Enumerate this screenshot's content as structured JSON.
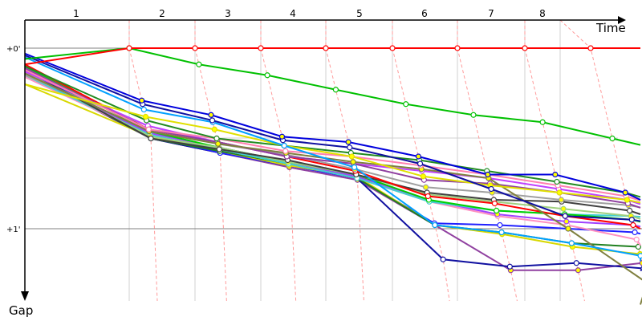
{
  "chart_data": {
    "type": "line",
    "xlabel": "Time",
    "ylabel": "Gap",
    "lap_labels": [
      "1",
      "2",
      "3",
      "4",
      "5",
      "6",
      "7",
      "8"
    ],
    "y_ticks": [
      {
        "value": 0,
        "label": "+0'"
      },
      {
        "value": 1,
        "label": "+1'"
      }
    ],
    "y_unit": "minutes",
    "x": [
      0,
      1,
      2,
      3,
      4,
      5,
      6,
      7,
      8
    ],
    "grid": true,
    "lap_marker_color": "#ff9a9a",
    "series": [
      {
        "color": "#ff0000",
        "values": [
          0.09,
          0,
          0,
          0,
          0,
          0,
          0,
          0,
          0
        ]
      },
      {
        "color": "#00c000",
        "values": [
          0.06,
          0,
          0.09,
          0.15,
          0.23,
          0.31,
          0.37,
          0.41,
          0.5
        ]
      },
      {
        "color": "#0000dd",
        "values": [
          0.03,
          0.29,
          0.37,
          0.49,
          0.52,
          0.6,
          0.7,
          0.7,
          0.8
        ]
      },
      {
        "color": "#1010a0",
        "values": [
          0.04,
          0.31,
          0.4,
          0.51,
          0.55,
          0.64,
          0.78,
          0.93,
          0.95
        ]
      },
      {
        "color": "#00a0ff",
        "values": [
          0.05,
          0.34,
          0.41,
          0.54,
          0.66,
          0.98,
          1.02,
          1.08,
          1.15
        ]
      },
      {
        "color": "#e0e000",
        "values": [
          0.2,
          0.38,
          0.45,
          0.54,
          0.6,
          0.71,
          0.76,
          0.8,
          0.84
        ]
      },
      {
        "color": "#228b22",
        "values": [
          0.1,
          0.4,
          0.5,
          0.54,
          0.58,
          0.62,
          0.68,
          0.74,
          0.8
        ]
      },
      {
        "color": "#ff80b0",
        "values": [
          0.12,
          0.45,
          0.5,
          0.57,
          0.6,
          0.65,
          0.7,
          0.76,
          0.82
        ]
      },
      {
        "color": "#808040",
        "values": [
          0.14,
          0.46,
          0.53,
          0.58,
          0.63,
          0.67,
          0.72,
          1.0,
          1.3
        ]
      },
      {
        "color": "#9040a0",
        "values": [
          0.11,
          0.45,
          0.52,
          0.6,
          0.64,
          0.73,
          0.75,
          0.8,
          0.86
        ]
      },
      {
        "color": "#c040ff",
        "values": [
          0.13,
          0.43,
          0.52,
          0.6,
          0.64,
          0.68,
          0.72,
          0.78,
          0.84
        ]
      },
      {
        "color": "#a0a0a0",
        "values": [
          0.15,
          0.43,
          0.53,
          0.59,
          0.67,
          0.77,
          0.8,
          0.84,
          0.87
        ]
      },
      {
        "color": "#ff0000",
        "values": [
          0.09,
          0.45,
          0.52,
          0.6,
          0.68,
          0.82,
          0.86,
          0.93,
          0.98
        ]
      },
      {
        "color": "#404040",
        "values": [
          0.12,
          0.5,
          0.56,
          0.62,
          0.7,
          0.8,
          0.84,
          0.85,
          0.9
        ]
      },
      {
        "color": "#a0d080",
        "values": [
          0.13,
          0.49,
          0.55,
          0.63,
          0.7,
          0.81,
          0.85,
          0.89,
          0.93
        ]
      },
      {
        "color": "#00d000",
        "values": [
          0.1,
          0.46,
          0.55,
          0.63,
          0.7,
          0.84,
          0.9,
          0.92,
          0.95
        ]
      },
      {
        "color": "#40d0d0",
        "values": [
          0.15,
          0.48,
          0.56,
          0.64,
          0.72,
          0.85,
          0.9,
          0.92,
          0.93
        ]
      },
      {
        "color": "#a040ff",
        "values": [
          0.14,
          0.47,
          0.55,
          0.63,
          0.71,
          0.84,
          0.92,
          0.96,
          0.98
        ]
      },
      {
        "color": "#ff90c0",
        "values": [
          0.16,
          0.48,
          0.56,
          0.64,
          0.72,
          0.85,
          0.93,
          0.98,
          1.06
        ]
      },
      {
        "color": "#208020",
        "values": [
          0.13,
          0.5,
          0.57,
          0.64,
          0.72,
          0.98,
          1.02,
          1.08,
          1.1
        ]
      },
      {
        "color": "#d8d800",
        "values": [
          0.2,
          0.49,
          0.57,
          0.65,
          0.71,
          0.98,
          1.03,
          1.1,
          1.14
        ]
      },
      {
        "color": "#2020ff",
        "values": [
          0.11,
          0.49,
          0.58,
          0.65,
          0.72,
          0.97,
          0.98,
          1.0,
          1.02
        ]
      },
      {
        "color": "#1010a0",
        "values": [
          0.12,
          0.5,
          0.58,
          0.65,
          0.72,
          1.17,
          1.21,
          1.19,
          1.22
        ]
      },
      {
        "color": "#9040a0",
        "values": [
          0.14,
          0.5,
          0.58,
          0.66,
          0.73,
          0.98,
          1.23,
          1.23,
          1.19
        ]
      }
    ]
  }
}
